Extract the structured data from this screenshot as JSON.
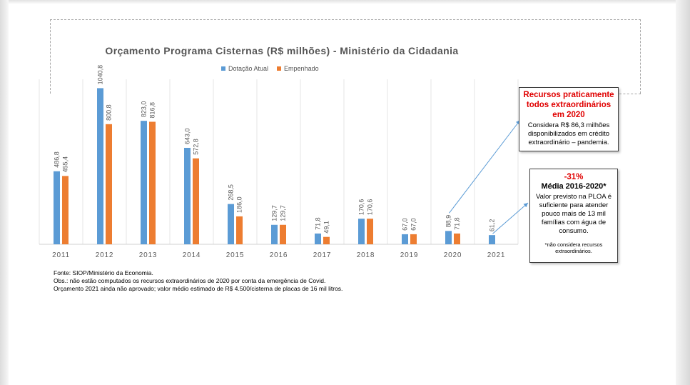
{
  "chart_data": {
    "type": "bar",
    "title": "Orçamento Programa Cisternas (R$ milhões) - Ministério da Cidadania",
    "categories": [
      "2011",
      "2012",
      "2013",
      "2014",
      "2015",
      "2016",
      "2017",
      "2018",
      "2019",
      "2020",
      "2021"
    ],
    "series": [
      {
        "name": "Dotação Atual",
        "color": "#5b9bd5",
        "values": [
          486.8,
          1040.8,
          823.0,
          643.0,
          268.5,
          129.7,
          71.8,
          170.6,
          67.0,
          88.9,
          61.2
        ],
        "labels": [
          "486,8",
          "1040,8",
          "823,0",
          "643,0",
          "268,5",
          "129,7",
          "71,8",
          "170,6",
          "67,0",
          "88,9",
          "61,2"
        ]
      },
      {
        "name": "Empenhado",
        "color": "#ed7d31",
        "values": [
          455.4,
          800.8,
          816.8,
          572.8,
          186.0,
          129.7,
          49.1,
          170.6,
          67.0,
          71.8,
          null
        ],
        "labels": [
          "455,4",
          "800,8",
          "816,8",
          "572,8",
          "186,0",
          "129,7",
          "49,1",
          "170,6",
          "67,0",
          "71,8",
          ""
        ]
      }
    ],
    "ylim": [
      0,
      1100
    ],
    "legend_position": "top",
    "grid": "vertical"
  },
  "notes": {
    "extraordinary": {
      "headline": "Recursos praticamente todos extraordinários em 2020",
      "body": "Considera R$ 86,3 milhões disponibilizados em crédito extraordinário – pandemia."
    },
    "average": {
      "percent": "-31%",
      "headline": "Média 2016-2020*",
      "body": "Valor previsto na PLOA é suficiente para atender pouco mais de 13 mil famílias com água de consumo.",
      "footnote": "*não considera recursos extraordinários."
    }
  },
  "footnotes": {
    "source": "Fonte: SIOP/Ministério da Economia.",
    "obs": "Obs.: não estão computados os recursos extraordinários de 2020 por conta da emergência de Covid.",
    "budget": "Orçamento 2021 ainda não aprovado; valor médio estimado de R$ 4.500/cisterna de placas de 16 mil litros."
  }
}
